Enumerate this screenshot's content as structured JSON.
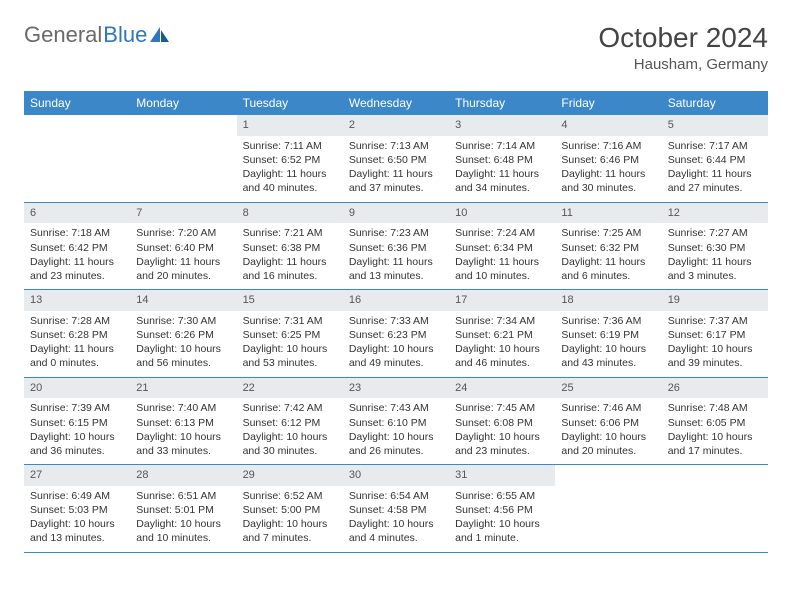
{
  "logo": {
    "text_gray": "General",
    "text_blue": "Blue"
  },
  "title": "October 2024",
  "location": "Hausham, Germany",
  "colors": {
    "header_bg": "#3b87c8",
    "header_text": "#ffffff",
    "daynum_bg": "#e8ebed",
    "border": "#3b87c8",
    "body_text": "#333333"
  },
  "day_names": [
    "Sunday",
    "Monday",
    "Tuesday",
    "Wednesday",
    "Thursday",
    "Friday",
    "Saturday"
  ],
  "weeks": [
    [
      {
        "num": "",
        "sunrise": "",
        "sunset": "",
        "daylight": ""
      },
      {
        "num": "",
        "sunrise": "",
        "sunset": "",
        "daylight": ""
      },
      {
        "num": "1",
        "sunrise": "Sunrise: 7:11 AM",
        "sunset": "Sunset: 6:52 PM",
        "daylight": "Daylight: 11 hours and 40 minutes."
      },
      {
        "num": "2",
        "sunrise": "Sunrise: 7:13 AM",
        "sunset": "Sunset: 6:50 PM",
        "daylight": "Daylight: 11 hours and 37 minutes."
      },
      {
        "num": "3",
        "sunrise": "Sunrise: 7:14 AM",
        "sunset": "Sunset: 6:48 PM",
        "daylight": "Daylight: 11 hours and 34 minutes."
      },
      {
        "num": "4",
        "sunrise": "Sunrise: 7:16 AM",
        "sunset": "Sunset: 6:46 PM",
        "daylight": "Daylight: 11 hours and 30 minutes."
      },
      {
        "num": "5",
        "sunrise": "Sunrise: 7:17 AM",
        "sunset": "Sunset: 6:44 PM",
        "daylight": "Daylight: 11 hours and 27 minutes."
      }
    ],
    [
      {
        "num": "6",
        "sunrise": "Sunrise: 7:18 AM",
        "sunset": "Sunset: 6:42 PM",
        "daylight": "Daylight: 11 hours and 23 minutes."
      },
      {
        "num": "7",
        "sunrise": "Sunrise: 7:20 AM",
        "sunset": "Sunset: 6:40 PM",
        "daylight": "Daylight: 11 hours and 20 minutes."
      },
      {
        "num": "8",
        "sunrise": "Sunrise: 7:21 AM",
        "sunset": "Sunset: 6:38 PM",
        "daylight": "Daylight: 11 hours and 16 minutes."
      },
      {
        "num": "9",
        "sunrise": "Sunrise: 7:23 AM",
        "sunset": "Sunset: 6:36 PM",
        "daylight": "Daylight: 11 hours and 13 minutes."
      },
      {
        "num": "10",
        "sunrise": "Sunrise: 7:24 AM",
        "sunset": "Sunset: 6:34 PM",
        "daylight": "Daylight: 11 hours and 10 minutes."
      },
      {
        "num": "11",
        "sunrise": "Sunrise: 7:25 AM",
        "sunset": "Sunset: 6:32 PM",
        "daylight": "Daylight: 11 hours and 6 minutes."
      },
      {
        "num": "12",
        "sunrise": "Sunrise: 7:27 AM",
        "sunset": "Sunset: 6:30 PM",
        "daylight": "Daylight: 11 hours and 3 minutes."
      }
    ],
    [
      {
        "num": "13",
        "sunrise": "Sunrise: 7:28 AM",
        "sunset": "Sunset: 6:28 PM",
        "daylight": "Daylight: 11 hours and 0 minutes."
      },
      {
        "num": "14",
        "sunrise": "Sunrise: 7:30 AM",
        "sunset": "Sunset: 6:26 PM",
        "daylight": "Daylight: 10 hours and 56 minutes."
      },
      {
        "num": "15",
        "sunrise": "Sunrise: 7:31 AM",
        "sunset": "Sunset: 6:25 PM",
        "daylight": "Daylight: 10 hours and 53 minutes."
      },
      {
        "num": "16",
        "sunrise": "Sunrise: 7:33 AM",
        "sunset": "Sunset: 6:23 PM",
        "daylight": "Daylight: 10 hours and 49 minutes."
      },
      {
        "num": "17",
        "sunrise": "Sunrise: 7:34 AM",
        "sunset": "Sunset: 6:21 PM",
        "daylight": "Daylight: 10 hours and 46 minutes."
      },
      {
        "num": "18",
        "sunrise": "Sunrise: 7:36 AM",
        "sunset": "Sunset: 6:19 PM",
        "daylight": "Daylight: 10 hours and 43 minutes."
      },
      {
        "num": "19",
        "sunrise": "Sunrise: 7:37 AM",
        "sunset": "Sunset: 6:17 PM",
        "daylight": "Daylight: 10 hours and 39 minutes."
      }
    ],
    [
      {
        "num": "20",
        "sunrise": "Sunrise: 7:39 AM",
        "sunset": "Sunset: 6:15 PM",
        "daylight": "Daylight: 10 hours and 36 minutes."
      },
      {
        "num": "21",
        "sunrise": "Sunrise: 7:40 AM",
        "sunset": "Sunset: 6:13 PM",
        "daylight": "Daylight: 10 hours and 33 minutes."
      },
      {
        "num": "22",
        "sunrise": "Sunrise: 7:42 AM",
        "sunset": "Sunset: 6:12 PM",
        "daylight": "Daylight: 10 hours and 30 minutes."
      },
      {
        "num": "23",
        "sunrise": "Sunrise: 7:43 AM",
        "sunset": "Sunset: 6:10 PM",
        "daylight": "Daylight: 10 hours and 26 minutes."
      },
      {
        "num": "24",
        "sunrise": "Sunrise: 7:45 AM",
        "sunset": "Sunset: 6:08 PM",
        "daylight": "Daylight: 10 hours and 23 minutes."
      },
      {
        "num": "25",
        "sunrise": "Sunrise: 7:46 AM",
        "sunset": "Sunset: 6:06 PM",
        "daylight": "Daylight: 10 hours and 20 minutes."
      },
      {
        "num": "26",
        "sunrise": "Sunrise: 7:48 AM",
        "sunset": "Sunset: 6:05 PM",
        "daylight": "Daylight: 10 hours and 17 minutes."
      }
    ],
    [
      {
        "num": "27",
        "sunrise": "Sunrise: 6:49 AM",
        "sunset": "Sunset: 5:03 PM",
        "daylight": "Daylight: 10 hours and 13 minutes."
      },
      {
        "num": "28",
        "sunrise": "Sunrise: 6:51 AM",
        "sunset": "Sunset: 5:01 PM",
        "daylight": "Daylight: 10 hours and 10 minutes."
      },
      {
        "num": "29",
        "sunrise": "Sunrise: 6:52 AM",
        "sunset": "Sunset: 5:00 PM",
        "daylight": "Daylight: 10 hours and 7 minutes."
      },
      {
        "num": "30",
        "sunrise": "Sunrise: 6:54 AM",
        "sunset": "Sunset: 4:58 PM",
        "daylight": "Daylight: 10 hours and 4 minutes."
      },
      {
        "num": "31",
        "sunrise": "Sunrise: 6:55 AM",
        "sunset": "Sunset: 4:56 PM",
        "daylight": "Daylight: 10 hours and 1 minute."
      },
      {
        "num": "",
        "sunrise": "",
        "sunset": "",
        "daylight": ""
      },
      {
        "num": "",
        "sunrise": "",
        "sunset": "",
        "daylight": ""
      }
    ]
  ]
}
